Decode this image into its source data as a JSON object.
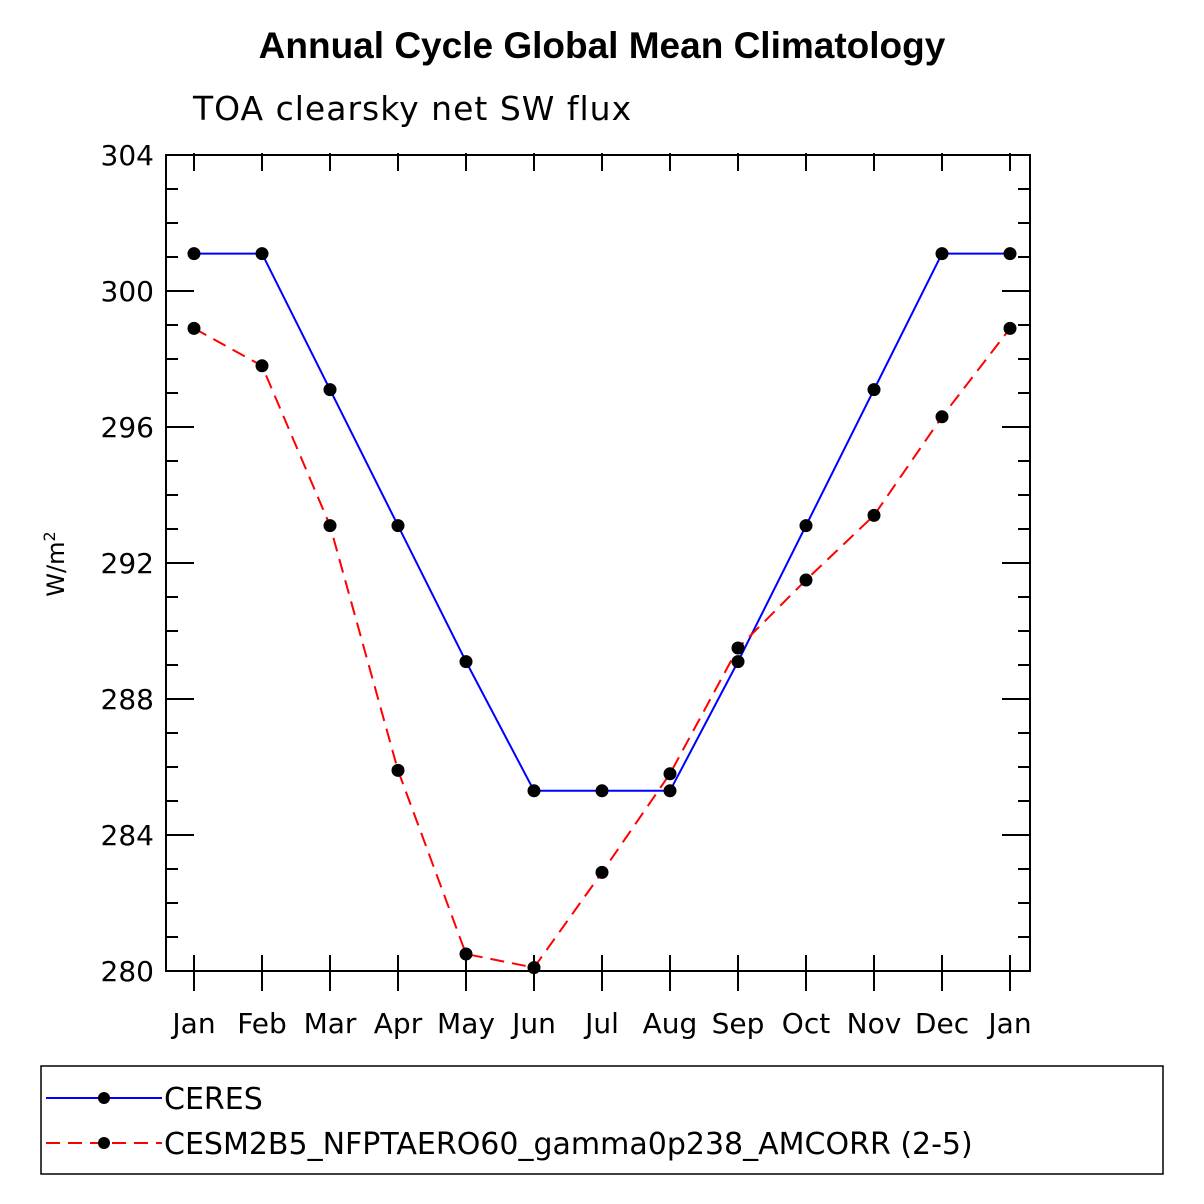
{
  "chart_data": {
    "type": "line",
    "title": "Annual Cycle Global Mean Climatology",
    "subtitle": "TOA clearsky net SW flux",
    "ylabel_base": "W/m",
    "ylabel_exp": "2",
    "xlabel": "",
    "categories": [
      "Jan",
      "Feb",
      "Mar",
      "Apr",
      "May",
      "Jun",
      "Jul",
      "Aug",
      "Sep",
      "Oct",
      "Nov",
      "Dec",
      "Jan"
    ],
    "ylim": [
      280,
      304
    ],
    "yticks": [
      280,
      284,
      288,
      292,
      296,
      300,
      304
    ],
    "ytick_labels": [
      "280",
      "284",
      "288",
      "292",
      "296",
      "300",
      "304"
    ],
    "grid": false,
    "legend_position": "bottom",
    "series": [
      {
        "name": "CERES",
        "color": "#0000ff",
        "dash": "solid",
        "values": [
          301.1,
          301.1,
          297.1,
          293.1,
          289.1,
          285.3,
          285.3,
          285.3,
          289.1,
          293.1,
          297.1,
          301.1,
          301.1
        ]
      },
      {
        "name": "CESM2B5_NFPTAERO60_gamma0p238_AMCORR (2-5)",
        "color": "#ff0000",
        "dash": "dashed",
        "values": [
          298.9,
          297.8,
          293.1,
          285.9,
          280.5,
          280.1,
          282.9,
          285.8,
          289.5,
          291.5,
          293.4,
          296.3,
          298.9
        ]
      }
    ]
  }
}
